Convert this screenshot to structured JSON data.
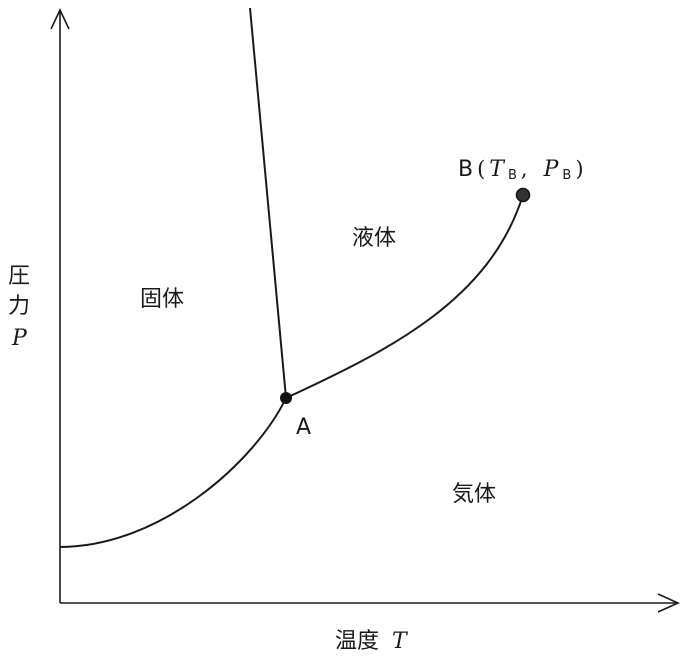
{
  "axes": {
    "y_label": {
      "kanji": [
        "圧",
        "力"
      ],
      "symbol": "P"
    },
    "x_label": {
      "kanji": "温度",
      "symbol": "T"
    }
  },
  "regions": {
    "solid": "固体",
    "liquid": "液体",
    "gas": "気体"
  },
  "points": {
    "triple": {
      "label": "A"
    },
    "critical": {
      "label": "B",
      "paren_open": "(",
      "t_symbol": "T",
      "t_sub": "B",
      "separator": ",",
      "p_symbol": "P",
      "p_sub": "B",
      "paren_close": ")"
    }
  }
}
